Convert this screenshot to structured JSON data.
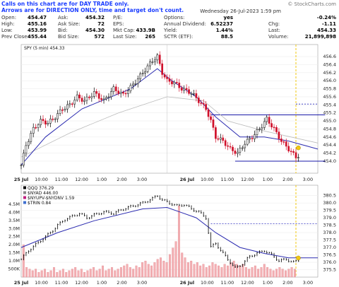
{
  "notice": {
    "line1": "Calls on this chart are for DAY TRADE only.",
    "line2": "Arrows are for DIRECTION ONLY, time and target don't count."
  },
  "header": {
    "datetime": "Wednesday 26-Jul-2023 1:59 pm",
    "watermark": "© StockCharts.com"
  },
  "quote": {
    "col1": [
      {
        "label": "Open:",
        "value": "454.47"
      },
      {
        "label": "High:",
        "value": "455.16"
      },
      {
        "label": "Low:",
        "value": "453.99"
      },
      {
        "label": "Prev Close:",
        "value": "455.44"
      }
    ],
    "col2": [
      {
        "label": "Ask:",
        "value": "454.32"
      },
      {
        "label": "Ask Size:",
        "value": "72"
      },
      {
        "label": "Bid:",
        "value": "454.30"
      },
      {
        "label": "Bid Size:",
        "value": "572"
      }
    ],
    "col3": [
      {
        "label": "P/E:",
        "value": ""
      },
      {
        "label": "EPS:",
        "value": ""
      },
      {
        "label": "Mkt Cap:",
        "value": "433.9B"
      },
      {
        "label": "Last Size:",
        "value": "265"
      }
    ],
    "col4": [
      {
        "label": "Options:",
        "value": "yes"
      },
      {
        "label": "Annual Dividend:",
        "value": "6.52237"
      },
      {
        "label": "Yield:",
        "value": "1.44%"
      },
      {
        "label": "SCTR (ETF):",
        "value": "88.5"
      }
    ],
    "col5": [
      {
        "label": "",
        "value": "-0.24%"
      },
      {
        "label": "Chg:",
        "value": "-1.11"
      },
      {
        "label": "Last:",
        "value": "454.33"
      },
      {
        "label": "Volume:",
        "value": "21,899,898"
      }
    ],
    "colors": {
      "negative": "#e8001c"
    }
  },
  "chart_data": [
    {
      "type": "candlestick",
      "legend": "SPY (5 min) 454.33",
      "ylim": [
        453.7,
        456.9
      ],
      "y_ticks": [
        "456.6",
        "456.4",
        "456.2",
        "456.0",
        "455.8",
        "455.6",
        "455.4",
        "455.2",
        "455.0",
        "454.8",
        "454.6",
        "454.4",
        "454.2",
        "454.0"
      ],
      "x_ticks": [
        "25 Jul",
        "10:00",
        "11:00",
        "12:00",
        "1:00",
        "2:00",
        "3:00",
        "26 Jul",
        "10:00",
        "11:00",
        "12:00",
        "1:00",
        "2:00",
        "3:00"
      ],
      "close_path": [
        [
          0,
          453.9
        ],
        [
          2,
          454.4
        ],
        [
          5,
          454.8
        ],
        [
          8,
          455.0
        ],
        [
          11,
          454.95
        ],
        [
          14,
          455.1
        ],
        [
          17,
          455.3
        ],
        [
          20,
          455.4
        ],
        [
          23,
          455.6
        ],
        [
          26,
          455.5
        ],
        [
          30,
          455.7
        ],
        [
          34,
          455.5
        ],
        [
          38,
          455.8
        ],
        [
          42,
          455.65
        ],
        [
          46,
          455.9
        ],
        [
          50,
          456.2
        ],
        [
          54,
          456.5
        ],
        [
          56,
          456.6
        ],
        [
          58,
          456.2
        ],
        [
          60,
          456.0
        ],
        [
          63,
          455.95
        ],
        [
          66,
          455.8
        ],
        [
          70,
          455.7
        ],
        [
          73,
          455.5
        ],
        [
          76,
          455.3
        ],
        [
          78,
          455.0
        ],
        [
          80,
          454.6
        ],
        [
          83,
          454.5
        ],
        [
          86,
          454.3
        ],
        [
          89,
          454.2
        ],
        [
          92,
          454.45
        ],
        [
          95,
          454.6
        ],
        [
          98,
          454.8
        ],
        [
          101,
          455.05
        ],
        [
          104,
          454.8
        ],
        [
          107,
          454.5
        ],
        [
          110,
          454.3
        ],
        [
          113,
          454.1
        ],
        [
          116,
          454.2
        ],
        [
          119,
          454.25
        ],
        [
          122,
          454.3
        ]
      ],
      "ma_fast": [
        [
          0,
          453.9
        ],
        [
          10,
          454.6
        ],
        [
          25,
          455.3
        ],
        [
          45,
          455.8
        ],
        [
          56,
          456.3
        ],
        [
          62,
          456.0
        ],
        [
          72,
          455.6
        ],
        [
          80,
          455.1
        ],
        [
          90,
          454.6
        ],
        [
          100,
          454.6
        ],
        [
          110,
          454.5
        ],
        [
          122,
          454.3
        ]
      ],
      "ma_slow": [
        [
          0,
          454.1
        ],
        [
          20,
          454.7
        ],
        [
          40,
          455.2
        ],
        [
          60,
          455.6
        ],
        [
          75,
          455.5
        ],
        [
          85,
          455.0
        ],
        [
          100,
          454.75
        ],
        [
          122,
          454.45
        ]
      ],
      "resistance": 455.15,
      "support": 454.0,
      "dotted_level": 455.42,
      "last_price_label": "454.33"
    },
    {
      "type": "line",
      "legend": [
        "QQQ 376.29",
        "$NYAD 446.00",
        "$NYUPV-$NYDNV 1.59",
        "$TRIN 0.84"
      ],
      "ylim": [
        375.0,
        381.2
      ],
      "y_ticks": [
        "380.5",
        "380.0",
        "379.5",
        "379.0",
        "378.5",
        "378.0",
        "377.5",
        "377.0",
        "376.5",
        "376.0",
        "375.5"
      ],
      "volume_ticks": [
        "4.5M",
        "4.0M",
        "3.5M",
        "3.0M",
        "2.5M",
        "2.0M",
        "1.5M",
        "1.0M",
        "500K"
      ],
      "x_ticks": [
        "25 Jul",
        "10:00",
        "11:00",
        "12:00",
        "1:00",
        "2:00",
        "3:00",
        "26 Jul",
        "10:00",
        "11:00",
        "12:00",
        "1:00",
        "2:00",
        "3:00"
      ],
      "close_path": [
        [
          0,
          376.2
        ],
        [
          3,
          376.8
        ],
        [
          6,
          377.2
        ],
        [
          9,
          377.6
        ],
        [
          12,
          378.0
        ],
        [
          15,
          378.5
        ],
        [
          18,
          378.9
        ],
        [
          21,
          379.1
        ],
        [
          24,
          379.3
        ],
        [
          27,
          379.0
        ],
        [
          30,
          379.2
        ],
        [
          34,
          379.4
        ],
        [
          38,
          379.3
        ],
        [
          42,
          379.6
        ],
        [
          46,
          379.8
        ],
        [
          50,
          380.0
        ],
        [
          54,
          380.3
        ],
        [
          56,
          380.5
        ],
        [
          58,
          380.2
        ],
        [
          61,
          380.0
        ],
        [
          64,
          379.8
        ],
        [
          67,
          379.9
        ],
        [
          70,
          379.6
        ],
        [
          73,
          379.4
        ],
        [
          76,
          379.0
        ],
        [
          78,
          377.0
        ],
        [
          80,
          377.3
        ],
        [
          82,
          376.8
        ],
        [
          85,
          376.2
        ],
        [
          88,
          375.6
        ],
        [
          91,
          375.9
        ],
        [
          94,
          376.4
        ],
        [
          97,
          376.6
        ],
        [
          100,
          376.8
        ],
        [
          103,
          376.5
        ],
        [
          106,
          376.1
        ],
        [
          109,
          376.2
        ],
        [
          112,
          376.0
        ],
        [
          115,
          376.2
        ],
        [
          118,
          376.25
        ],
        [
          122,
          376.29
        ]
      ],
      "ma_line": [
        [
          0,
          377.0
        ],
        [
          15,
          378.0
        ],
        [
          30,
          378.8
        ],
        [
          50,
          379.6
        ],
        [
          60,
          379.7
        ],
        [
          72,
          379.0
        ],
        [
          80,
          378.0
        ],
        [
          90,
          377.0
        ],
        [
          100,
          376.6
        ],
        [
          110,
          376.3
        ],
        [
          122,
          376.3
        ]
      ],
      "dotted_level": 378.6,
      "volume": [
        2.0,
        0.6,
        0.5,
        0.4,
        0.5,
        0.3,
        0.4,
        0.5,
        0.3,
        0.4,
        0.6,
        0.3,
        0.4,
        0.5,
        0.3,
        0.4,
        0.5,
        0.6,
        0.4,
        0.5,
        0.3,
        0.4,
        0.5,
        0.6,
        0.4,
        0.5,
        0.7,
        0.4,
        0.5,
        0.6,
        0.4,
        0.5,
        0.6,
        0.7,
        0.8,
        0.6,
        0.5,
        0.7,
        0.6,
        0.9,
        1.0,
        0.8,
        0.7,
        0.9,
        1.1,
        1.2,
        1.0,
        0.9,
        1.4,
        1.8,
        2.2,
        4.4,
        1.5,
        1.2,
        0.9,
        1.0,
        0.8,
        0.9,
        0.7,
        0.8,
        0.6,
        0.7,
        0.9,
        0.8,
        0.7,
        0.6,
        0.8,
        0.7,
        0.9,
        1.0,
        0.8,
        0.7,
        0.8,
        0.6,
        0.5,
        0.6,
        0.7,
        0.5,
        0.6,
        0.8,
        0.6,
        0.5,
        0.4,
        0.5,
        0.6,
        0.5,
        0.4,
        0.5,
        0.6,
        0.5
      ],
      "last_price_label": "376.29"
    }
  ]
}
